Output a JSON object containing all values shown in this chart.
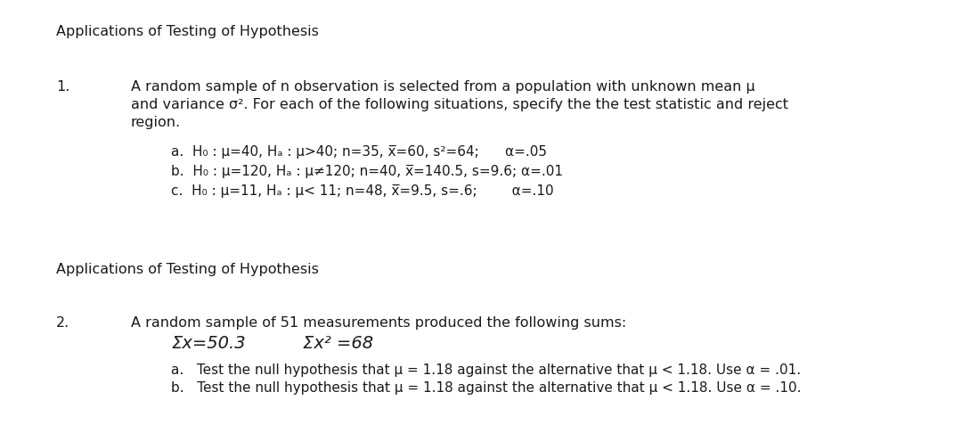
{
  "bg_color": "#ffffff",
  "text_color": "#1a1a1a",
  "title1": "Applications of Testing of Hypothesis",
  "title2": "Applications of Testing of Hypothesis",
  "section1_num": "1.",
  "intro_line1": "A random sample of n observation is selected from a population with unknown mean μ",
  "intro_line2": "and variance σ². For each of the following situations, specify the the test statistic and reject",
  "intro_line3": "region.",
  "item_a": "a.  H₀ : μ=40, Hₐ : μ>40; n=35, x̅=60, s²=64;      α=.05",
  "item_b": "b.  H₀ : μ=120, Hₐ : μ≠120; n=40, x̅=140.5, s=9.6; α=.01",
  "item_c": "c.  H₀ : μ=11, Hₐ : μ< 11; n=48, x̅=9.5, s=.6;        α=.10",
  "section2_num": "2.",
  "section2_intro": "A random sample of 51 measurements produced the following sums:",
  "sum1": "Σx=50.3",
  "sum2": "Σx² =68",
  "sub_a": "a.   Test the null hypothesis that μ = 1.18 against the alternative that μ < 1.18. Use α = .01.",
  "sub_b": "b.   Test the null hypothesis that μ = 1.18 against the alternative that μ < 1.18. Use α = .10.",
  "font_title": 11.5,
  "font_body": 11.5,
  "font_small": 11
}
